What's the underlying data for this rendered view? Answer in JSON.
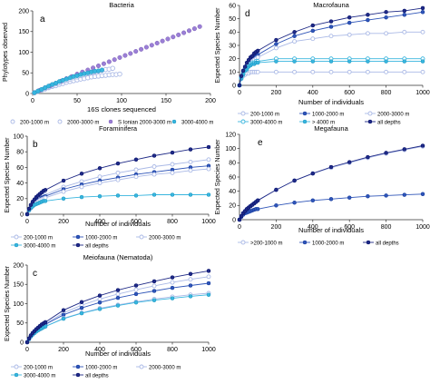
{
  "colors": {
    "purple": "#9b7fd6",
    "light_blue": "#aab9e6",
    "navy": "#1f2a86",
    "dark_navy": "#2b2f8f",
    "mid_blue": "#2f55b8",
    "cyan": "#38b5de"
  },
  "chart_data": [
    {
      "id": "a",
      "panel_letter": "a",
      "type": "scatter",
      "title": "Bacteria",
      "xlabel": "16S clones sequenced",
      "ylabel": "Phylotypes observed",
      "xlim": [
        0,
        200
      ],
      "ylim": [
        0,
        200
      ],
      "xticks": [
        0,
        50,
        100,
        150,
        200
      ],
      "yticks": [
        0,
        50,
        100,
        150,
        200
      ],
      "legend_position": "bottom",
      "series": [
        {
          "name": "200-1000 m",
          "marker": "hollow",
          "color": "#aab9e6",
          "x": [
            2,
            6,
            10,
            14,
            18,
            22,
            26,
            30,
            34,
            38,
            42,
            46,
            50,
            54,
            58,
            62,
            66,
            70,
            74,
            78,
            82,
            86,
            90,
            94,
            98
          ],
          "y": [
            2,
            5,
            8,
            11,
            14,
            17,
            19,
            22,
            24,
            27,
            29,
            31,
            33,
            35,
            36,
            38,
            40,
            41,
            42,
            43,
            44,
            45,
            46,
            46,
            47
          ]
        },
        {
          "name": "2000-3000 m",
          "marker": "hollow",
          "color": "#aab9e6",
          "x": [
            2,
            6,
            10,
            14,
            18,
            22,
            26,
            30,
            34,
            38,
            42,
            46,
            50,
            54,
            58,
            62,
            66,
            70,
            74,
            78,
            82,
            86,
            90
          ],
          "y": [
            2,
            6,
            9,
            13,
            16,
            20,
            23,
            26,
            29,
            32,
            35,
            38,
            40,
            43,
            45,
            48,
            50,
            52,
            54,
            56,
            58,
            59,
            61
          ]
        },
        {
          "name": "S Ionian 2000-3000 m",
          "marker": "filled",
          "color": "#9b7fd6",
          "x": [
            2,
            8,
            14,
            20,
            26,
            32,
            38,
            44,
            50,
            56,
            62,
            68,
            74,
            80,
            86,
            92,
            98,
            104,
            110,
            116,
            122,
            128,
            134,
            140,
            146,
            152,
            158,
            164,
            170,
            176,
            182,
            188
          ],
          "y": [
            2,
            8,
            14,
            19,
            25,
            30,
            36,
            41,
            47,
            52,
            57,
            62,
            67,
            72,
            77,
            82,
            87,
            92,
            97,
            102,
            107,
            112,
            117,
            122,
            127,
            132,
            137,
            142,
            147,
            152,
            157,
            162
          ]
        },
        {
          "name": "3000-4000 m",
          "marker": "filled",
          "color": "#38b5de",
          "x": [
            2,
            6,
            10,
            14,
            18,
            22,
            26,
            30,
            34,
            38,
            42,
            46,
            50,
            54,
            58,
            62,
            66,
            70,
            74,
            78
          ],
          "y": [
            2,
            6,
            10,
            14,
            18,
            22,
            25,
            29,
            32,
            35,
            38,
            41,
            43,
            46,
            48,
            50,
            52,
            54,
            55,
            57
          ]
        }
      ]
    },
    {
      "id": "b",
      "panel_letter": "b",
      "type": "line",
      "title": "Foraminifera",
      "xlabel": "Number of individuals",
      "ylabel": "Expected Species Number",
      "xlim": [
        0,
        1000
      ],
      "ylim": [
        0,
        100
      ],
      "xticks": [
        0,
        200,
        400,
        600,
        800,
        1000
      ],
      "yticks": [
        0,
        20,
        40,
        60,
        80,
        100
      ],
      "legend_position": "bottom",
      "x": [
        0,
        10,
        20,
        30,
        40,
        50,
        60,
        70,
        80,
        90,
        100,
        200,
        300,
        400,
        500,
        600,
        700,
        800,
        900,
        1000
      ],
      "series": [
        {
          "name": "200-1000 m",
          "marker": "hollow",
          "color": "#aab9e6",
          "values": [
            0,
            6,
            10,
            13,
            15,
            17,
            19,
            21,
            22,
            24,
            25,
            35,
            42,
            48,
            53,
            57,
            61,
            64,
            67,
            70
          ]
        },
        {
          "name": "1000-2000 m",
          "marker": "filled",
          "color": "#2f55b8",
          "values": [
            0,
            5,
            9,
            12,
            14,
            16,
            18,
            19,
            21,
            22,
            23,
            32,
            38,
            43,
            47,
            51,
            54,
            57,
            60,
            62
          ]
        },
        {
          "name": "2000-3000 m",
          "marker": "hollow",
          "color": "#aab9e6",
          "values": [
            0,
            5,
            8,
            11,
            13,
            15,
            16,
            18,
            19,
            20,
            21,
            29,
            35,
            40,
            44,
            48,
            51,
            53,
            56,
            58
          ]
        },
        {
          "name": "3000-4000 m",
          "marker": "filled",
          "color": "#38b5de",
          "values": [
            0,
            5,
            8,
            10,
            12,
            13,
            14,
            15,
            16,
            17,
            17,
            20,
            22,
            23,
            24,
            24,
            25,
            25,
            25,
            25
          ]
        },
        {
          "name": "all depths",
          "marker": "filled",
          "color": "#1f2a86",
          "values": [
            0,
            7,
            12,
            16,
            19,
            22,
            24,
            26,
            28,
            30,
            31,
            43,
            52,
            59,
            65,
            70,
            75,
            79,
            83,
            86
          ]
        }
      ]
    },
    {
      "id": "c",
      "panel_letter": "c",
      "type": "line",
      "title": "Meiofauna (Nematoda)",
      "xlabel": "Number of individuals",
      "ylabel": "Expected Species Number",
      "xlim": [
        0,
        1000
      ],
      "ylim": [
        0,
        200
      ],
      "xticks": [
        0,
        200,
        400,
        600,
        800,
        1000
      ],
      "yticks": [
        0,
        50,
        100,
        150,
        200
      ],
      "legend_position": "bottom",
      "x": [
        0,
        10,
        20,
        30,
        40,
        50,
        60,
        70,
        80,
        90,
        100,
        200,
        300,
        400,
        500,
        600,
        700,
        800,
        900,
        1000
      ],
      "series": [
        {
          "name": "200-1000 m",
          "marker": "hollow",
          "color": "#aab9e6",
          "values": [
            0,
            9,
            16,
            22,
            27,
            31,
            35,
            39,
            42,
            45,
            48,
            76,
            96,
            112,
            125,
            136,
            146,
            155,
            163,
            170
          ]
        },
        {
          "name": "1000-2000 m",
          "marker": "filled",
          "color": "#2f55b8",
          "values": [
            0,
            9,
            16,
            21,
            26,
            30,
            33,
            37,
            40,
            43,
            46,
            71,
            89,
            103,
            115,
            125,
            133,
            141,
            147,
            153
          ]
        },
        {
          "name": "2000-3000 m",
          "marker": "hollow",
          "color": "#aab9e6",
          "values": [
            0,
            8,
            15,
            20,
            24,
            28,
            31,
            34,
            37,
            39,
            41,
            62,
            76,
            88,
            97,
            105,
            112,
            118,
            123,
            127
          ]
        },
        {
          "name": "3000-4000 m",
          "marker": "filled",
          "color": "#38b5de",
          "values": [
            0,
            8,
            15,
            20,
            24,
            28,
            31,
            34,
            36,
            39,
            41,
            61,
            75,
            86,
            95,
            103,
            109,
            114,
            119,
            123
          ]
        },
        {
          "name": "all depths",
          "marker": "filled",
          "color": "#1f2a86",
          "values": [
            0,
            10,
            18,
            24,
            29,
            34,
            38,
            42,
            46,
            49,
            52,
            83,
            104,
            121,
            135,
            147,
            158,
            168,
            177,
            185
          ]
        }
      ]
    },
    {
      "id": "d",
      "panel_letter": "d",
      "type": "line",
      "title": "Macrofauna",
      "xlabel": "Number of individuals",
      "ylabel": "Expected Species Number",
      "xlim": [
        0,
        1000
      ],
      "ylim": [
        0,
        60
      ],
      "xticks": [
        0,
        200,
        400,
        600,
        800,
        1000
      ],
      "yticks": [
        0,
        10,
        20,
        30,
        40,
        50,
        60
      ],
      "legend_position": "bottom",
      "x": [
        0,
        10,
        20,
        30,
        40,
        50,
        60,
        70,
        80,
        90,
        100,
        200,
        300,
        400,
        500,
        600,
        700,
        800,
        900,
        1000
      ],
      "series": [
        {
          "name": "200-1000 m",
          "marker": "hollow",
          "color": "#aab9e6",
          "values": [
            0,
            5,
            7,
            8,
            9,
            9,
            10,
            10,
            10,
            10,
            10,
            10,
            10,
            10,
            10,
            10,
            10,
            10,
            10,
            10
          ]
        },
        {
          "name": "1000-2000 m",
          "marker": "filled",
          "color": "#2f55b8",
          "values": [
            0,
            6,
            10,
            13,
            15,
            17,
            19,
            20,
            21,
            22,
            23,
            31,
            37,
            41,
            44,
            47,
            49,
            51,
            53,
            55
          ]
        },
        {
          "name": "2000-3000 m",
          "marker": "hollow",
          "color": "#aab9e6",
          "values": [
            0,
            6,
            10,
            12,
            14,
            16,
            17,
            18,
            19,
            20,
            21,
            28,
            33,
            35,
            37,
            38,
            39,
            39,
            40,
            40
          ]
        },
        {
          "name": "3000-4000 m",
          "marker": "hollow",
          "color": "#38b5de",
          "values": [
            0,
            6,
            9,
            12,
            14,
            15,
            16,
            17,
            17,
            18,
            18,
            20,
            20,
            20,
            20,
            20,
            20,
            20,
            20,
            20
          ]
        },
        {
          "name": "> 4000 m",
          "marker": "filled",
          "color": "#38b5de",
          "values": [
            0,
            5,
            8,
            11,
            12,
            14,
            15,
            16,
            16,
            17,
            17,
            18,
            18,
            18,
            18,
            18,
            18,
            18,
            18,
            18
          ]
        },
        {
          "name": "all depths",
          "marker": "filled",
          "color": "#1f2a86",
          "values": [
            0,
            7,
            11,
            14,
            17,
            19,
            21,
            22,
            24,
            25,
            26,
            34,
            40,
            45,
            48,
            51,
            53,
            55,
            56,
            58
          ]
        }
      ]
    },
    {
      "id": "e",
      "panel_letter": "e",
      "type": "line",
      "title": "Megafauna",
      "xlabel": "Number of individuals",
      "ylabel": "Expected Species Number",
      "xlim": [
        0,
        1000
      ],
      "ylim": [
        0,
        120
      ],
      "xticks": [
        0,
        200,
        400,
        600,
        800,
        1000
      ],
      "yticks": [
        0,
        20,
        40,
        60,
        80,
        100,
        120
      ],
      "legend_position": "bottom",
      "x": [
        0,
        10,
        20,
        30,
        40,
        50,
        60,
        70,
        80,
        90,
        100,
        200,
        300,
        400,
        500,
        600,
        700,
        800,
        900,
        1000
      ],
      "series": [
        {
          "name": ">200-1000 m",
          "marker": "hollow",
          "color": "#aab9e6",
          "values": [
            0,
            5,
            9,
            12,
            15,
            17,
            19,
            21,
            23,
            25,
            27,
            42,
            55,
            65,
            73,
            80,
            87,
            93,
            98,
            103
          ]
        },
        {
          "name": "1000-2000 m",
          "marker": "filled",
          "color": "#2f55b8",
          "values": [
            0,
            4,
            7,
            9,
            10,
            11,
            12,
            13,
            14,
            15,
            15,
            20,
            24,
            27,
            29,
            31,
            33,
            34,
            35,
            36
          ]
        },
        {
          "name": "all depths",
          "marker": "filled",
          "color": "#1f2a86",
          "values": [
            0,
            5,
            9,
            12,
            15,
            17,
            19,
            21,
            23,
            25,
            27,
            42,
            55,
            65,
            74,
            81,
            88,
            94,
            99,
            104
          ]
        }
      ]
    }
  ]
}
